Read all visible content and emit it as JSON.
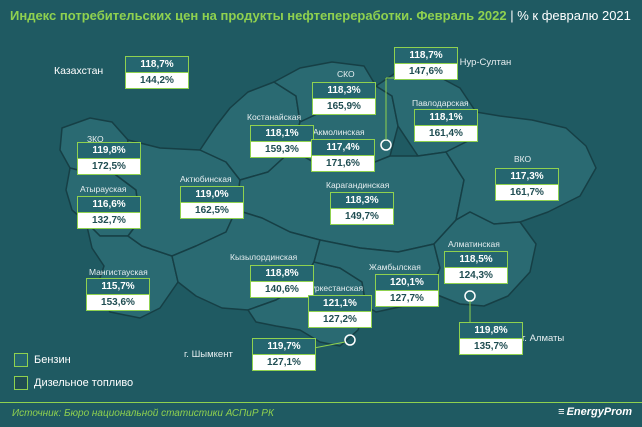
{
  "title": {
    "main": "Индекс потребительских цен на продукты нефтепереработки. Февраль 2022",
    "separator": "|",
    "subtitle": "% к февралю 2021"
  },
  "colors": {
    "accent": "#8fd14f",
    "background": "#1f5a62",
    "map_fill": "#2a6a72",
    "map_stroke": "#163f45"
  },
  "regions": [
    {
      "name": "Казахстан",
      "gasoline": "118,7%",
      "diesel": "144,2%"
    },
    {
      "name": "г. Нур-Султан",
      "gasoline": "118,7%",
      "diesel": "147,6%"
    },
    {
      "name": "СКО",
      "gasoline": "118,3%",
      "diesel": "165,9%"
    },
    {
      "name": "Павлодарская",
      "gasoline": "118,1%",
      "diesel": "161,4%"
    },
    {
      "name": "Костанайская",
      "gasoline": "118,1%",
      "diesel": "159,3%"
    },
    {
      "name": "Акмолинская",
      "gasoline": "117,4%",
      "diesel": "171,6%"
    },
    {
      "name": "ЗКО",
      "gasoline": "119,8%",
      "diesel": "172,5%"
    },
    {
      "name": "Атырауская",
      "gasoline": "116,6%",
      "diesel": "132,7%"
    },
    {
      "name": "Актюбинская",
      "gasoline": "119,0%",
      "diesel": "162,5%"
    },
    {
      "name": "Карагандинская",
      "gasoline": "118,3%",
      "diesel": "149,7%"
    },
    {
      "name": "ВКО",
      "gasoline": "117,3%",
      "diesel": "161,7%"
    },
    {
      "name": "Мангистауская",
      "gasoline": "115,7%",
      "diesel": "153,6%"
    },
    {
      "name": "Кызылординская",
      "gasoline": "118,8%",
      "diesel": "140,6%"
    },
    {
      "name": "Жамбылская",
      "gasoline": "120,1%",
      "diesel": "127,7%"
    },
    {
      "name": "Алматинская",
      "gasoline": "118,5%",
      "diesel": "124,3%"
    },
    {
      "name": "Туркестанская",
      "gasoline": "121,1%",
      "diesel": "127,2%"
    },
    {
      "name": "г. Шымкент",
      "gasoline": "119,7%",
      "diesel": "127,1%"
    },
    {
      "name": "г. Алматы",
      "gasoline": "119,8%",
      "diesel": "135,7%"
    }
  ],
  "legend": {
    "gasoline": "Бензин",
    "diesel": "Дизельное топливо"
  },
  "footer": {
    "source": "Источник: Бюро национальной статистики АСПиР РК",
    "logo": "EnergyProm"
  }
}
